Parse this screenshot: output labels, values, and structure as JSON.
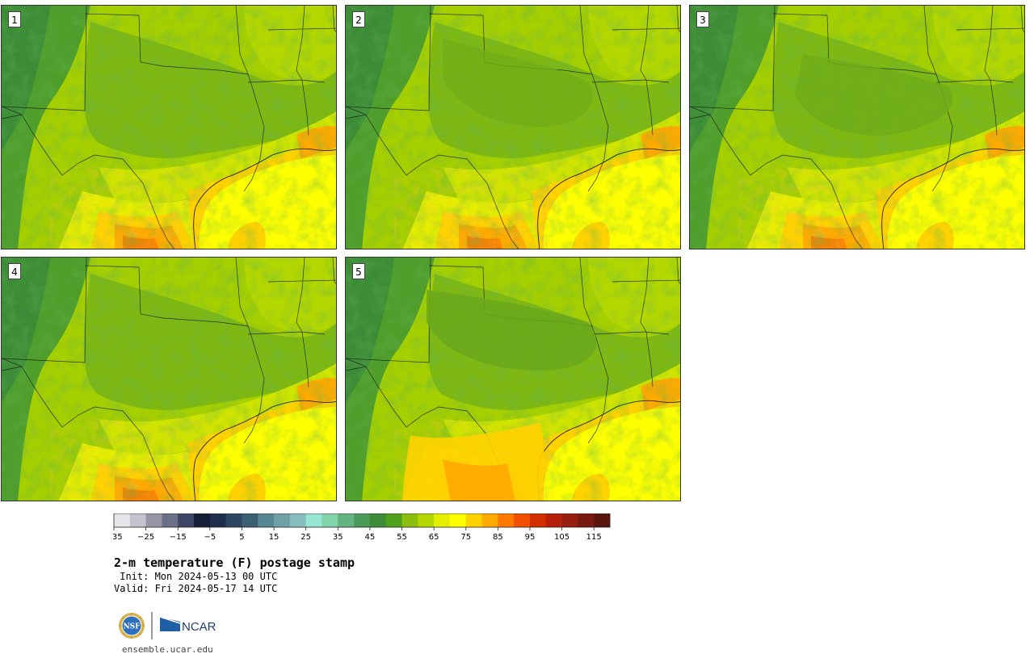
{
  "panels": [
    {
      "label": "1"
    },
    {
      "label": "2"
    },
    {
      "label": "3"
    },
    {
      "label": "4"
    },
    {
      "label": "5"
    }
  ],
  "colorbar": {
    "tick_labels": [
      "−35",
      "−25",
      "−15",
      "−5",
      "5",
      "15",
      "25",
      "35",
      "45",
      "55",
      "65",
      "75",
      "85",
      "95",
      "105",
      "115"
    ],
    "colors": [
      "#e6e6ea",
      "#c3c3cd",
      "#9696a5",
      "#6b6f87",
      "#3c4664",
      "#141e37",
      "#1e2d4b",
      "#2d465f",
      "#3c5f73",
      "#548791",
      "#6ea0a5",
      "#87bebe",
      "#96e6d2",
      "#82d2aa",
      "#64b482",
      "#4b9b5a",
      "#3c8c37",
      "#50a01e",
      "#8cbe0f",
      "#b4d700",
      "#e6ee00",
      "#ffff00",
      "#ffd200",
      "#ffaa00",
      "#ff7800",
      "#f05000",
      "#d22d00",
      "#b41e0a",
      "#961e0f",
      "#781910",
      "#5a140f"
    ]
  },
  "title": "2-m temperature (F) postage stamp",
  "init": " Init: Mon 2024-05-13 00 UTC",
  "valid": "Valid: Fri 2024-05-17 14 UTC",
  "logos": {
    "nsf": "NSF",
    "ncar": "NCAR"
  },
  "site": "ensemble.ucar.edu"
}
